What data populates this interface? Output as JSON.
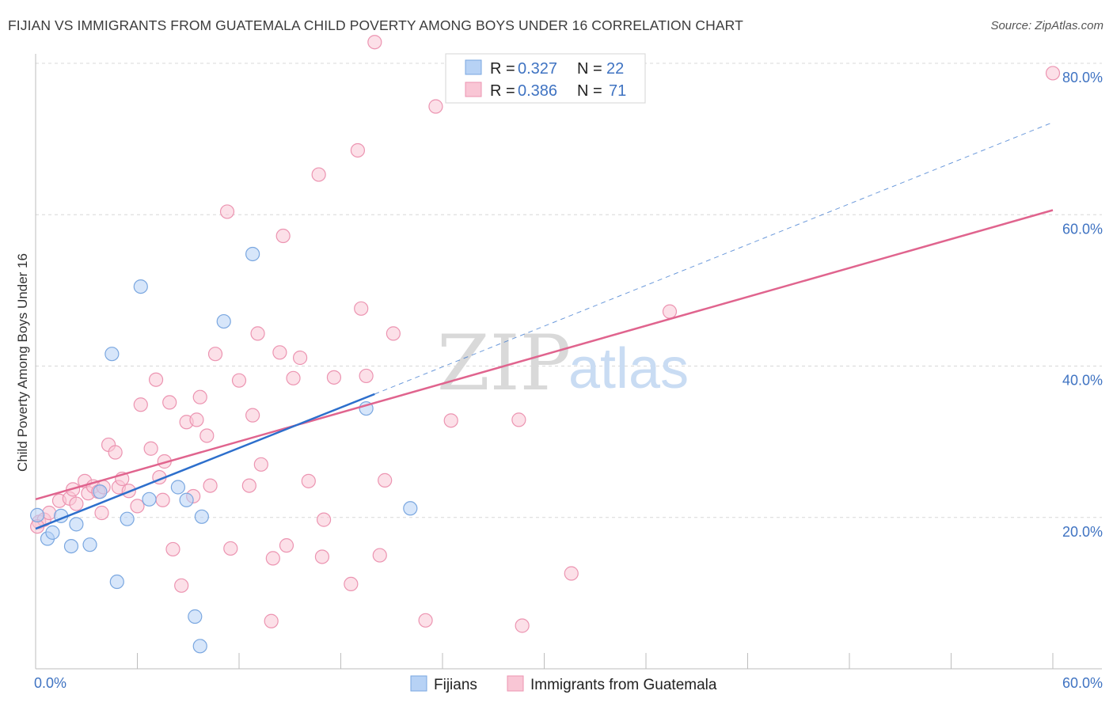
{
  "title": "FIJIAN VS IMMIGRANTS FROM GUATEMALA CHILD POVERTY AMONG BOYS UNDER 16 CORRELATION CHART",
  "source": "Source: ZipAtlas.com",
  "watermark": {
    "zip": "ZIP",
    "atlas": "atlas"
  },
  "colors": {
    "fijian_fill": "#b7d2f5",
    "fijian_stroke": "#7aa7e0",
    "fijian_line": "#2d6fcc",
    "guat_fill": "#f9c6d5",
    "guat_stroke": "#ec94b1",
    "guat_line": "#e0648e",
    "tick_text": "#3f73c2",
    "grid": "#d8d8d8"
  },
  "legend": {
    "rows": [
      {
        "r_label": "R =",
        "r_value": "0.327",
        "n_label": "N =",
        "n_value": "22"
      },
      {
        "r_label": "R =",
        "r_value": "0.386",
        "n_label": "N =",
        "n_value": "71"
      }
    ]
  },
  "bottom_legend": [
    "Fijians",
    "Immigrants from Guatemala"
  ],
  "chart_data": {
    "type": "scatter",
    "title": "FIJIAN VS IMMIGRANTS FROM GUATEMALA CHILD POVERTY AMONG BOYS UNDER 16 CORRELATION CHART",
    "xlabel": "",
    "ylabel": "Child Poverty Among Boys Under 16",
    "xlim": [
      0,
      60
    ],
    "ylim": [
      0,
      80
    ],
    "x_tick_labels": [
      "0.0%",
      "60.0%"
    ],
    "y_ticks": [
      20,
      40,
      60,
      80
    ],
    "y_tick_labels": [
      "20.0%",
      "40.0%",
      "60.0%",
      "80.0%"
    ],
    "grid": true,
    "legend_position": "top-center",
    "series": [
      {
        "name": "Fijians",
        "points": [
          [
            0.1,
            20.3
          ],
          [
            0.7,
            17.2
          ],
          [
            1.0,
            18.0
          ],
          [
            1.5,
            20.2
          ],
          [
            2.1,
            16.2
          ],
          [
            2.4,
            19.1
          ],
          [
            3.2,
            16.4
          ],
          [
            3.8,
            23.4
          ],
          [
            4.5,
            41.6
          ],
          [
            4.8,
            11.5
          ],
          [
            5.4,
            19.8
          ],
          [
            6.2,
            50.5
          ],
          [
            6.7,
            22.4
          ],
          [
            8.9,
            22.3
          ],
          [
            8.4,
            24.0
          ],
          [
            9.4,
            6.9
          ],
          [
            9.7,
            3.0
          ],
          [
            9.8,
            20.1
          ],
          [
            11.1,
            45.9
          ],
          [
            12.8,
            54.8
          ],
          [
            19.5,
            34.4
          ],
          [
            22.1,
            21.2
          ]
        ],
        "trend": {
          "x": [
            0,
            20
          ],
          "y": [
            18.5,
            36.3
          ],
          "extended_to": [
            60,
            72.2
          ]
        }
      },
      {
        "name": "Immigrants from Guatemala",
        "points": [
          [
            0.2,
            19.4
          ],
          [
            0.5,
            19.7
          ],
          [
            0.8,
            20.6
          ],
          [
            1.4,
            22.2
          ],
          [
            2.0,
            22.5
          ],
          [
            2.2,
            23.7
          ],
          [
            2.4,
            21.8
          ],
          [
            2.9,
            24.8
          ],
          [
            3.1,
            23.2
          ],
          [
            3.4,
            24.1
          ],
          [
            3.7,
            23.4
          ],
          [
            3.9,
            20.6
          ],
          [
            4.0,
            24.0
          ],
          [
            4.3,
            29.6
          ],
          [
            4.7,
            28.6
          ],
          [
            4.9,
            24.0
          ],
          [
            5.1,
            25.1
          ],
          [
            5.5,
            23.5
          ],
          [
            6.0,
            21.5
          ],
          [
            6.2,
            34.9
          ],
          [
            6.8,
            29.1
          ],
          [
            7.1,
            38.2
          ],
          [
            7.3,
            25.3
          ],
          [
            7.5,
            22.3
          ],
          [
            7.6,
            27.4
          ],
          [
            7.9,
            35.2
          ],
          [
            8.1,
            15.8
          ],
          [
            8.6,
            11.0
          ],
          [
            8.9,
            32.6
          ],
          [
            9.3,
            22.8
          ],
          [
            9.5,
            32.9
          ],
          [
            9.7,
            35.9
          ],
          [
            10.1,
            30.8
          ],
          [
            10.3,
            24.2
          ],
          [
            10.6,
            41.6
          ],
          [
            11.3,
            60.4
          ],
          [
            11.5,
            15.9
          ],
          [
            12.0,
            38.1
          ],
          [
            12.6,
            24.2
          ],
          [
            12.8,
            33.5
          ],
          [
            13.1,
            44.3
          ],
          [
            13.3,
            27.0
          ],
          [
            13.9,
            6.3
          ],
          [
            14.0,
            14.6
          ],
          [
            14.4,
            41.8
          ],
          [
            14.6,
            57.2
          ],
          [
            14.8,
            16.3
          ],
          [
            15.2,
            38.4
          ],
          [
            15.6,
            41.1
          ],
          [
            16.1,
            24.8
          ],
          [
            16.7,
            65.3
          ],
          [
            16.9,
            14.8
          ],
          [
            17.0,
            19.7
          ],
          [
            17.6,
            38.5
          ],
          [
            18.6,
            11.2
          ],
          [
            19.0,
            68.5
          ],
          [
            19.2,
            47.6
          ],
          [
            19.5,
            38.7
          ],
          [
            20.0,
            82.8
          ],
          [
            20.3,
            15.0
          ],
          [
            20.6,
            24.9
          ],
          [
            21.1,
            44.3
          ],
          [
            23.0,
            6.4
          ],
          [
            23.6,
            74.3
          ],
          [
            24.5,
            32.8
          ],
          [
            28.7,
            5.7
          ],
          [
            28.5,
            32.9
          ],
          [
            31.6,
            12.6
          ],
          [
            37.4,
            47.2
          ],
          [
            60.0,
            78.7
          ],
          [
            0.1,
            18.8
          ]
        ],
        "trend": {
          "x": [
            0,
            60
          ],
          "y": [
            22.4,
            60.6
          ]
        }
      }
    ]
  }
}
